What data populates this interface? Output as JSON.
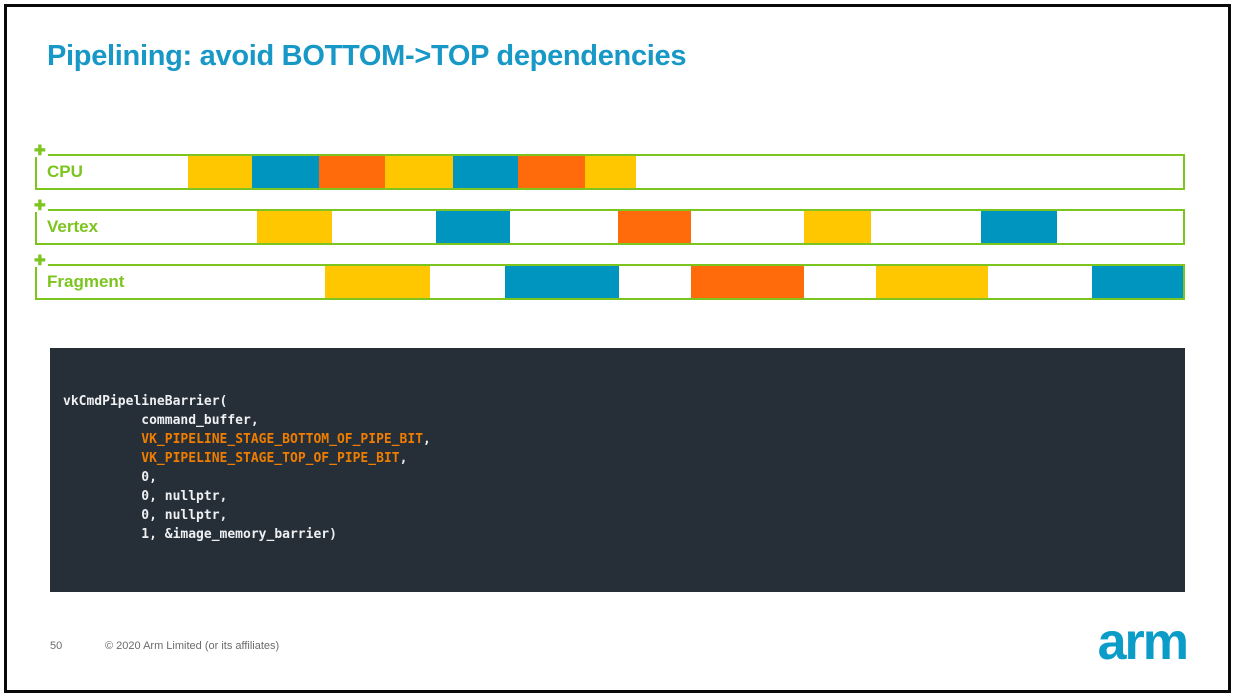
{
  "slide": {
    "title": "Pipelining: avoid BOTTOM->TOP dependencies",
    "footer": {
      "page_number": "50",
      "copyright": "© 2020 Arm Limited (or its affiliates)"
    },
    "logo_text": "arm"
  },
  "colors": {
    "title_blue": "#1898c6",
    "arm_green": "#7cc41e",
    "yellow": "#ffc700",
    "blue": "#0095be",
    "orange": "#ff6b0a",
    "code_bg": "#262e38",
    "code_text": "#eef0f2",
    "code_orange": "#ef7d00",
    "footer_gray": "#6b6b6b",
    "logo_blue": "#0c9cc8"
  },
  "chart_data": {
    "type": "timeline",
    "title": "Pipeline stage occupancy over time",
    "x_units": "percent of track width",
    "rows": [
      {
        "label": "CPU",
        "blocks": [
          {
            "color": "yellow",
            "x": 13.2,
            "w": 5.6
          },
          {
            "color": "blue",
            "x": 18.8,
            "w": 5.8
          },
          {
            "color": "orange",
            "x": 24.6,
            "w": 5.8
          },
          {
            "color": "yellow",
            "x": 30.4,
            "w": 5.9
          },
          {
            "color": "blue",
            "x": 36.3,
            "w": 5.7
          },
          {
            "color": "orange",
            "x": 42.0,
            "w": 5.8
          },
          {
            "color": "yellow",
            "x": 47.8,
            "w": 4.5
          }
        ]
      },
      {
        "label": "Vertex",
        "blocks": [
          {
            "color": "yellow",
            "x": 19.2,
            "w": 6.5
          },
          {
            "color": "blue",
            "x": 34.8,
            "w": 6.5
          },
          {
            "color": "orange",
            "x": 50.7,
            "w": 6.4
          },
          {
            "color": "yellow",
            "x": 66.9,
            "w": 5.9
          },
          {
            "color": "blue",
            "x": 82.4,
            "w": 6.6
          }
        ]
      },
      {
        "label": "Fragment",
        "blocks": [
          {
            "color": "yellow",
            "x": 25.1,
            "w": 9.2
          },
          {
            "color": "blue",
            "x": 40.8,
            "w": 10.0
          },
          {
            "color": "orange",
            "x": 57.1,
            "w": 9.8
          },
          {
            "color": "yellow",
            "x": 73.2,
            "w": 9.8
          },
          {
            "color": "blue",
            "x": 92.1,
            "w": 7.9
          }
        ]
      }
    ]
  },
  "code_block": {
    "lines": [
      [
        {
          "text": "vkCmdPipelineBarrier(",
          "color": "plain"
        }
      ],
      [
        {
          "text": "          command_buffer,",
          "color": "plain"
        }
      ],
      [
        {
          "text": "          ",
          "color": "plain"
        },
        {
          "text": "VK_PIPELINE_STAGE_BOTTOM_OF_PIPE_BIT",
          "color": "keyword"
        },
        {
          "text": ",",
          "color": "plain"
        }
      ],
      [
        {
          "text": "          ",
          "color": "plain"
        },
        {
          "text": "VK_PIPELINE_STAGE_TOP_OF_PIPE_BIT",
          "color": "keyword"
        },
        {
          "text": ",",
          "color": "plain"
        }
      ],
      [
        {
          "text": "          0,",
          "color": "plain"
        }
      ],
      [
        {
          "text": "          0, nullptr,",
          "color": "plain"
        }
      ],
      [
        {
          "text": "          0, nullptr,",
          "color": "plain"
        }
      ],
      [
        {
          "text": "          1, &image_memory_barrier)",
          "color": "plain"
        }
      ]
    ]
  },
  "icons": {
    "plus": "✚"
  }
}
